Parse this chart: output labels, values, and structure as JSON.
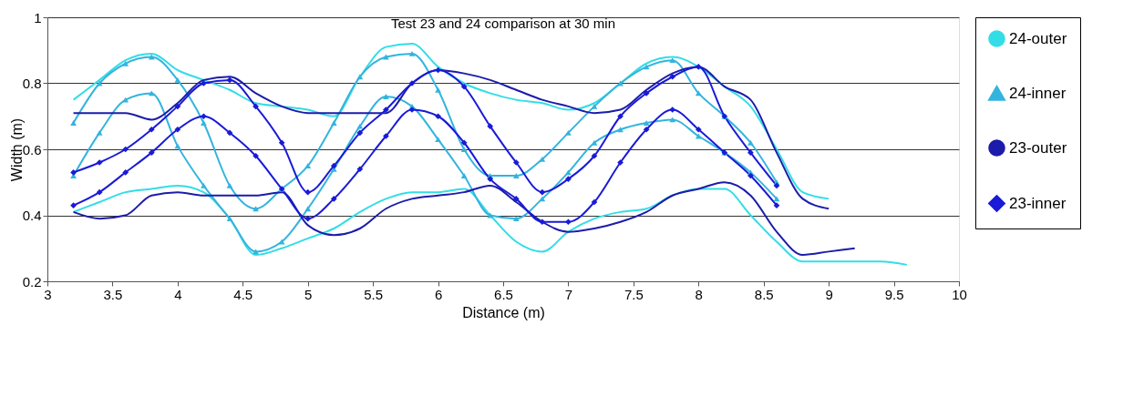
{
  "chart_data": {
    "type": "line",
    "title": "Test 23 and 24 comparison at 30 min",
    "xlabel": "Distance (m)",
    "ylabel": "Width (m)",
    "xlim": [
      3,
      10
    ],
    "xticks": [
      3,
      3.5,
      4,
      4.5,
      5,
      5.5,
      6,
      6.5,
      7,
      7.5,
      8,
      8.5,
      9,
      9.5,
      10
    ],
    "ylim": [
      0.2,
      1
    ],
    "yticks": [
      0.2,
      0.4,
      0.6,
      0.8,
      1
    ],
    "grid": "y",
    "legend": "right",
    "series": [
      {
        "name": "24-outer",
        "color": "#33dde6",
        "marker": "none",
        "x": [
          3.2,
          3.4,
          3.6,
          3.8,
          4.0,
          4.2,
          4.4,
          4.6,
          4.8,
          5.0,
          5.2,
          5.4,
          5.6,
          5.8,
          6.0,
          6.2,
          6.4,
          6.6,
          6.8,
          7.0,
          7.2,
          7.4,
          7.6,
          7.8,
          8.0,
          8.2,
          8.4,
          8.6,
          8.8,
          9.0
        ],
        "values": [
          0.75,
          0.81,
          0.87,
          0.89,
          0.84,
          0.81,
          0.78,
          0.74,
          0.73,
          0.72,
          0.7,
          0.82,
          0.91,
          0.92,
          0.85,
          0.8,
          0.77,
          0.75,
          0.74,
          0.72,
          0.74,
          0.8,
          0.86,
          0.88,
          0.85,
          0.79,
          0.73,
          0.6,
          0.47,
          0.45
        ]
      },
      {
        "color": "#33dde6",
        "marker": "none",
        "x": [
          3.2,
          3.4,
          3.6,
          3.8,
          4.0,
          4.2,
          4.4,
          4.6,
          4.8,
          5.0,
          5.2,
          5.4,
          5.6,
          5.8,
          6.0,
          6.2,
          6.4,
          6.6,
          6.8,
          7.0,
          7.2,
          7.4,
          7.6,
          7.8,
          8.0,
          8.2,
          8.4,
          8.6,
          8.8,
          9.0,
          9.2,
          9.4,
          9.6
        ],
        "values": [
          0.41,
          0.44,
          0.47,
          0.48,
          0.49,
          0.47,
          0.39,
          0.28,
          0.3,
          0.33,
          0.36,
          0.41,
          0.45,
          0.47,
          0.47,
          0.48,
          0.4,
          0.32,
          0.29,
          0.35,
          0.39,
          0.41,
          0.42,
          0.46,
          0.48,
          0.48,
          0.4,
          0.32,
          0.26,
          0.26,
          0.26,
          0.26,
          0.25
        ]
      },
      {
        "name": "24-inner",
        "color": "#33b4de",
        "marker": "triangle",
        "x": [
          3.2,
          3.4,
          3.6,
          3.8,
          4.0,
          4.2,
          4.4,
          4.6,
          4.8,
          5.0,
          5.2,
          5.4,
          5.6,
          5.8,
          6.0,
          6.2,
          6.4,
          6.6,
          6.8,
          7.0,
          7.2,
          7.4,
          7.6,
          7.8,
          8.0,
          8.2,
          8.4,
          8.6
        ],
        "values": [
          0.68,
          0.8,
          0.86,
          0.88,
          0.81,
          0.68,
          0.49,
          0.42,
          0.48,
          0.55,
          0.68,
          0.82,
          0.88,
          0.89,
          0.78,
          0.6,
          0.52,
          0.52,
          0.57,
          0.65,
          0.73,
          0.8,
          0.85,
          0.87,
          0.77,
          0.7,
          0.62,
          0.5
        ]
      },
      {
        "color": "#33b4de",
        "marker": "triangle",
        "x": [
          3.2,
          3.4,
          3.6,
          3.8,
          4.0,
          4.2,
          4.4,
          4.6,
          4.8,
          5.0,
          5.2,
          5.4,
          5.6,
          5.8,
          6.0,
          6.2,
          6.4,
          6.6,
          6.8,
          7.0,
          7.2,
          7.4,
          7.6,
          7.8,
          8.0,
          8.2,
          8.4,
          8.6
        ],
        "values": [
          0.52,
          0.65,
          0.75,
          0.77,
          0.61,
          0.49,
          0.39,
          0.29,
          0.32,
          0.42,
          0.54,
          0.67,
          0.76,
          0.73,
          0.63,
          0.52,
          0.4,
          0.39,
          0.45,
          0.53,
          0.62,
          0.66,
          0.68,
          0.69,
          0.64,
          0.59,
          0.53,
          0.45
        ]
      },
      {
        "name": "23-outer",
        "color": "#1c1caa",
        "marker": "none",
        "x": [
          3.2,
          3.4,
          3.6,
          3.8,
          4.0,
          4.2,
          4.4,
          4.6,
          4.8,
          5.0,
          5.2,
          5.4,
          5.6,
          5.8,
          6.0,
          6.2,
          6.4,
          6.6,
          6.8,
          7.0,
          7.2,
          7.4,
          7.6,
          7.8,
          8.0,
          8.2,
          8.4,
          8.6,
          8.8,
          9.0
        ],
        "values": [
          0.71,
          0.71,
          0.71,
          0.69,
          0.74,
          0.81,
          0.82,
          0.77,
          0.73,
          0.71,
          0.71,
          0.71,
          0.71,
          0.8,
          0.84,
          0.83,
          0.81,
          0.78,
          0.75,
          0.73,
          0.71,
          0.72,
          0.78,
          0.83,
          0.85,
          0.79,
          0.75,
          0.59,
          0.45,
          0.42
        ]
      },
      {
        "color": "#1c1caa",
        "marker": "none",
        "x": [
          3.2,
          3.4,
          3.6,
          3.8,
          4.0,
          4.2,
          4.4,
          4.6,
          4.8,
          5.0,
          5.2,
          5.4,
          5.6,
          5.8,
          6.0,
          6.2,
          6.4,
          6.6,
          6.8,
          7.0,
          7.2,
          7.4,
          7.6,
          7.8,
          8.0,
          8.2,
          8.4,
          8.6,
          8.8,
          9.0,
          9.2
        ],
        "values": [
          0.41,
          0.39,
          0.4,
          0.46,
          0.47,
          0.46,
          0.46,
          0.46,
          0.47,
          0.37,
          0.34,
          0.36,
          0.42,
          0.45,
          0.46,
          0.47,
          0.49,
          0.44,
          0.38,
          0.35,
          0.36,
          0.38,
          0.41,
          0.46,
          0.48,
          0.5,
          0.46,
          0.35,
          0.28,
          0.29,
          0.3
        ]
      },
      {
        "name": "23-inner",
        "color": "#1a1ad8",
        "marker": "diamond",
        "x": [
          3.2,
          3.4,
          3.6,
          3.8,
          4.0,
          4.2,
          4.4,
          4.6,
          4.8,
          5.0,
          5.2,
          5.4,
          5.6,
          5.8,
          6.0,
          6.2,
          6.4,
          6.6,
          6.8,
          7.0,
          7.2,
          7.4,
          7.6,
          7.8,
          8.0,
          8.2,
          8.4,
          8.6
        ],
        "values": [
          0.53,
          0.56,
          0.6,
          0.66,
          0.73,
          0.8,
          0.81,
          0.73,
          0.62,
          0.47,
          0.55,
          0.65,
          0.72,
          0.8,
          0.84,
          0.79,
          0.67,
          0.56,
          0.47,
          0.51,
          0.58,
          0.7,
          0.77,
          0.82,
          0.85,
          0.7,
          0.59,
          0.49
        ]
      },
      {
        "color": "#1a1ad8",
        "marker": "diamond",
        "x": [
          3.2,
          3.4,
          3.6,
          3.8,
          4.0,
          4.2,
          4.4,
          4.6,
          4.8,
          5.0,
          5.2,
          5.4,
          5.6,
          5.8,
          6.0,
          6.2,
          6.4,
          6.6,
          6.8,
          7.0,
          7.2,
          7.4,
          7.6,
          7.8,
          8.0,
          8.2,
          8.4,
          8.6
        ],
        "values": [
          0.43,
          0.47,
          0.53,
          0.59,
          0.66,
          0.7,
          0.65,
          0.58,
          0.48,
          0.39,
          0.45,
          0.54,
          0.64,
          0.72,
          0.7,
          0.62,
          0.51,
          0.45,
          0.38,
          0.38,
          0.44,
          0.56,
          0.66,
          0.72,
          0.66,
          0.59,
          0.52,
          0.43
        ]
      }
    ]
  }
}
